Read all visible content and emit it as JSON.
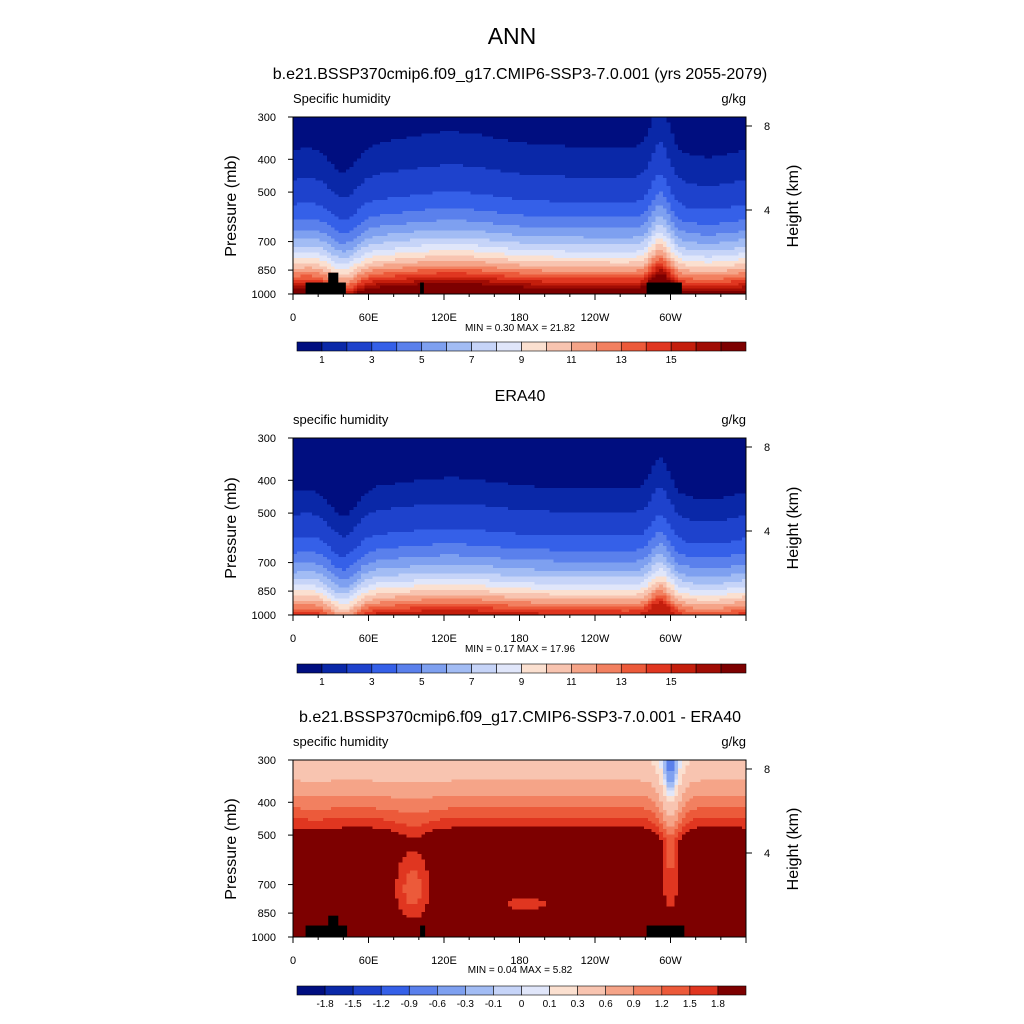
{
  "figure_title": "ANN",
  "chart_data": [
    {
      "type": "heatmap",
      "title": "b.e21.BSSP370cmip6.f09_g17.CMIP6-SSP3-7.0.001 (yrs 2055-2079)",
      "left_label": "Specific humidity",
      "units": "g/kg",
      "ylabel": "Pressure (mb)",
      "ylabel_right": "Height (km)",
      "pressure_ticks": [
        "300",
        "400",
        "500",
        "700",
        "850",
        "1000"
      ],
      "pressure_tick_values": [
        300,
        400,
        500,
        700,
        850,
        1000
      ],
      "height_ticks": [
        "8",
        "4"
      ],
      "height_tick_values": [
        8,
        4
      ],
      "x_ticks": [
        "0",
        "60E",
        "120E",
        "180",
        "120W",
        "60W"
      ],
      "x_tick_values": [
        0,
        60,
        120,
        180,
        240,
        300
      ],
      "xlim": [
        0,
        360
      ],
      "ylim": [
        300,
        1000
      ],
      "y_scale": "log",
      "stats_text": "MIN =   0.30  MAX =  21.82",
      "min": 0.3,
      "max": 21.82,
      "field": "mean",
      "colorbar_labels": [
        "1",
        "3",
        "5",
        "7",
        "9",
        "11",
        "13",
        "15"
      ],
      "colorbar_levels": [
        0.5,
        1,
        2,
        3,
        4,
        5,
        6,
        7,
        8,
        9,
        10,
        11,
        12,
        13,
        14,
        15,
        16
      ],
      "colors": [
        "#000e80",
        "#0a28a8",
        "#1e42cc",
        "#3560e8",
        "#5a80ec",
        "#7ea0f0",
        "#a2bcf4",
        "#c6d4f8",
        "#e0e6fa",
        "#fbe0d0",
        "#f8c4b0",
        "#f5a488",
        "#f28060",
        "#ec5a3a",
        "#e03620",
        "#c41e0c",
        "#a00c04",
        "#7d0000"
      ],
      "terrain": [
        {
          "lon_start": 10,
          "lon_end": 42,
          "p_top": 925
        },
        {
          "lon_start": 28,
          "lon_end": 36,
          "p_top": 865
        },
        {
          "lon_start": 101,
          "lon_end": 104,
          "p_top": 925
        },
        {
          "lon_start": 281,
          "lon_end": 309,
          "p_top": 925
        }
      ]
    },
    {
      "type": "heatmap",
      "title": "ERA40",
      "left_label": "specific humidity",
      "units": "g/kg",
      "ylabel": "Pressure (mb)",
      "ylabel_right": "Height (km)",
      "pressure_ticks": [
        "300",
        "400",
        "500",
        "700",
        "850",
        "1000"
      ],
      "pressure_tick_values": [
        300,
        400,
        500,
        700,
        850,
        1000
      ],
      "height_ticks": [
        "8",
        "4"
      ],
      "height_tick_values": [
        8,
        4
      ],
      "x_ticks": [
        "0",
        "60E",
        "120E",
        "180",
        "120W",
        "60W"
      ],
      "x_tick_values": [
        0,
        60,
        120,
        180,
        240,
        300
      ],
      "xlim": [
        0,
        360
      ],
      "ylim": [
        300,
        1000
      ],
      "y_scale": "log",
      "stats_text": "MIN =   0.17  MAX =  17.96",
      "min": 0.17,
      "max": 17.96,
      "field": "obs",
      "colorbar_labels": [
        "1",
        "3",
        "5",
        "7",
        "9",
        "11",
        "13",
        "15"
      ],
      "colorbar_levels": [
        0.5,
        1,
        2,
        3,
        4,
        5,
        6,
        7,
        8,
        9,
        10,
        11,
        12,
        13,
        14,
        15,
        16
      ],
      "colors": [
        "#000e80",
        "#0a28a8",
        "#1e42cc",
        "#3560e8",
        "#5a80ec",
        "#7ea0f0",
        "#a2bcf4",
        "#c6d4f8",
        "#e0e6fa",
        "#fbe0d0",
        "#f8c4b0",
        "#f5a488",
        "#f28060",
        "#ec5a3a",
        "#e03620",
        "#c41e0c",
        "#a00c04",
        "#7d0000"
      ],
      "terrain": []
    },
    {
      "type": "heatmap",
      "title": "b.e21.BSSP370cmip6.f09_g17.CMIP6-SSP3-7.0.001 - ERA40",
      "left_label": "specific humidity",
      "units": "g/kg",
      "ylabel": "Pressure (mb)",
      "ylabel_right": "Height (km)",
      "pressure_ticks": [
        "300",
        "400",
        "500",
        "700",
        "850",
        "1000"
      ],
      "pressure_tick_values": [
        300,
        400,
        500,
        700,
        850,
        1000
      ],
      "height_ticks": [
        "8",
        "4"
      ],
      "height_tick_values": [
        8,
        4
      ],
      "x_ticks": [
        "0",
        "60E",
        "120E",
        "180",
        "120W",
        "60W"
      ],
      "x_tick_values": [
        0,
        60,
        120,
        180,
        240,
        300
      ],
      "xlim": [
        0,
        360
      ],
      "ylim": [
        300,
        1000
      ],
      "y_scale": "log",
      "stats_text": "MIN =   0.04  MAX =   5.82",
      "min": 0.04,
      "max": 5.82,
      "field": "diff",
      "colorbar_labels": [
        "-1.8",
        "-1.5",
        "-1.2",
        "-0.9",
        "-0.6",
        "-0.3",
        "-0.1",
        "0",
        "0.1",
        "0.3",
        "0.6",
        "0.9",
        "1.2",
        "1.5",
        "1.8"
      ],
      "colorbar_levels": [
        -1.8,
        -1.5,
        -1.2,
        -0.9,
        -0.6,
        -0.3,
        -0.1,
        0,
        0.1,
        0.3,
        0.6,
        0.9,
        1.2,
        1.5,
        1.8
      ],
      "colors": [
        "#000e80",
        "#0a28a8",
        "#1e42cc",
        "#3560e8",
        "#5a80ec",
        "#7ea0f0",
        "#a2bcf4",
        "#c6d4f8",
        "#e0e6fa",
        "#fbe0d0",
        "#f8c4b0",
        "#f5a488",
        "#f28060",
        "#ec5a3a",
        "#e03620",
        "#7d0000"
      ],
      "terrain": [
        {
          "lon_start": 10,
          "lon_end": 43,
          "p_top": 925
        },
        {
          "lon_start": 28,
          "lon_end": 36,
          "p_top": 865
        },
        {
          "lon_start": 101,
          "lon_end": 105,
          "p_top": 925
        },
        {
          "lon_start": 281,
          "lon_end": 311,
          "p_top": 925
        }
      ]
    }
  ]
}
